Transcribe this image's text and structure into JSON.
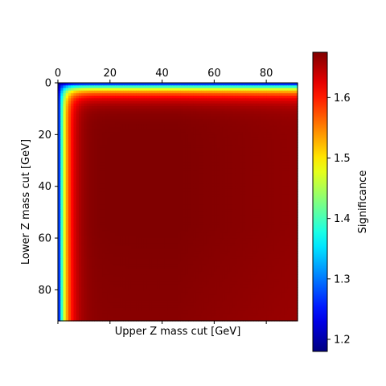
{
  "chart_data": {
    "type": "heatmap",
    "title": "",
    "xlabel": "Upper Z mass cut [GeV]",
    "ylabel": "Lower Z mass cut [GeV]",
    "colorbar_label": "Significance",
    "colormap": "jet",
    "xlim": [
      0,
      92
    ],
    "ylim": [
      92,
      0
    ],
    "x_tick_position": "top",
    "x_ticks": [
      "0",
      "20",
      "40",
      "60",
      "80"
    ],
    "y_ticks": [
      "0",
      "20",
      "40",
      "60",
      "80"
    ],
    "colorbar_range": [
      1.18,
      1.675
    ],
    "colorbar_ticks": [
      "1.2",
      "1.3",
      "1.4",
      "1.5",
      "1.6"
    ],
    "grid": false,
    "surface_description_samples": [
      {
        "x": 0,
        "y": 0,
        "value": 1.18
      },
      {
        "x": 2,
        "y": 2,
        "value": 1.4
      },
      {
        "x": 5,
        "y": 5,
        "value": 1.55
      },
      {
        "x": 10,
        "y": 10,
        "value": 1.64
      },
      {
        "x": 30,
        "y": 30,
        "value": 1.665
      },
      {
        "x": 50,
        "y": 50,
        "value": 1.675
      },
      {
        "x": 90,
        "y": 90,
        "value": 1.67
      }
    ]
  }
}
